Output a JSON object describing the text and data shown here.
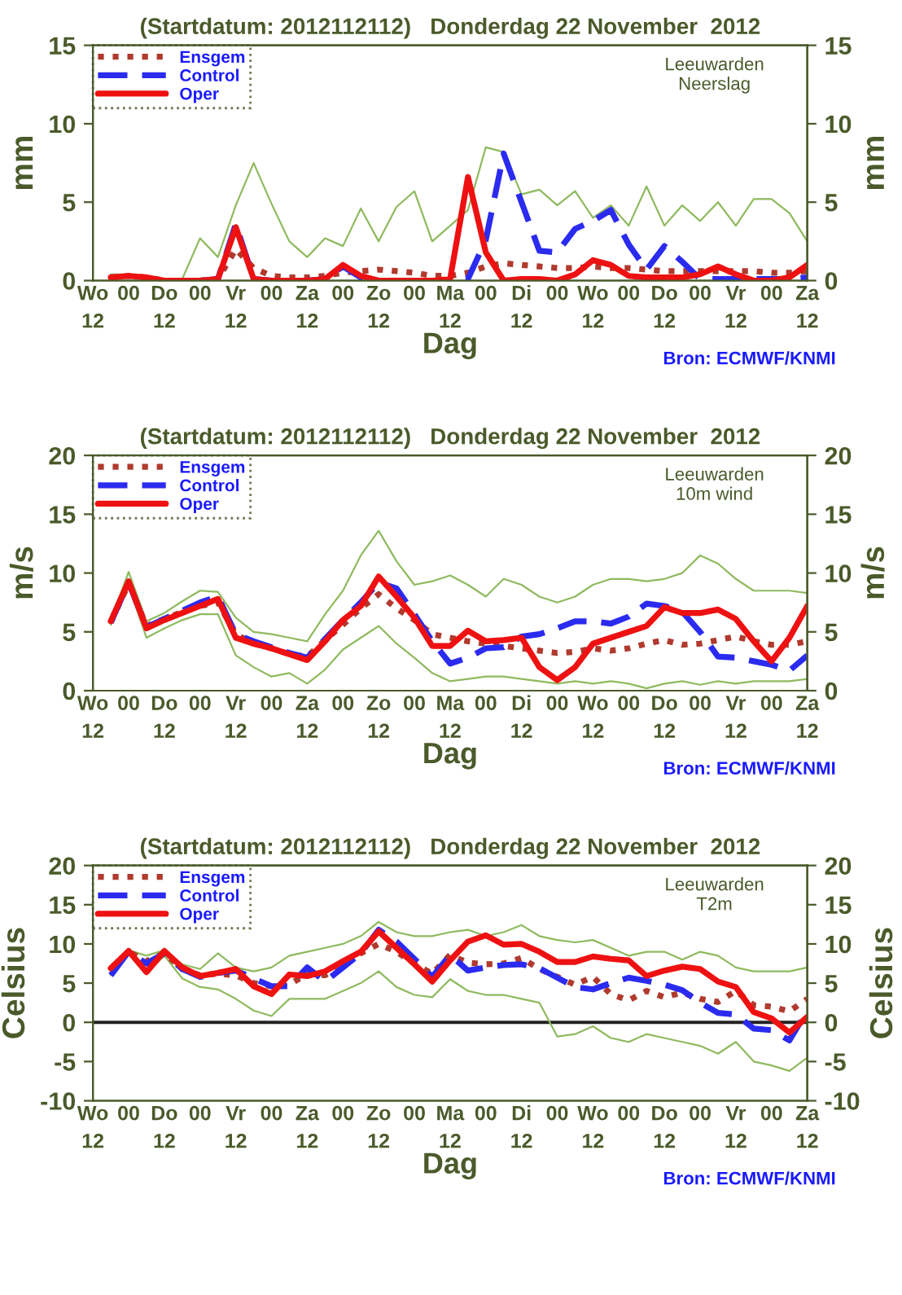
{
  "chart_data": [
    {
      "type": "line",
      "title": "(Startdatum: 2012112112)   Donderdag 22 November  2012",
      "xlabel": "Dag",
      "ylabel": "mm",
      "y2label": "mm",
      "categories": [
        "Wo\n12",
        null,
        "00",
        null,
        "Do\n12",
        null,
        "00",
        null,
        "Vr\n12",
        null,
        "00",
        null,
        "Za\n12",
        null,
        "00",
        null,
        "Zo\n12",
        null,
        "00",
        null,
        "Ma\n12",
        null,
        "00",
        null,
        "Di\n12",
        null,
        "00",
        null,
        "Wo\n12",
        null,
        "00",
        null,
        "Do\n12",
        null,
        "00",
        null,
        "Vr\n12",
        null,
        "00",
        null,
        "Za\n12"
      ],
      "ylim": [
        0,
        15
      ],
      "yticks": [
        0,
        5,
        10,
        15
      ],
      "y2lim": [
        0,
        15
      ],
      "y2ticks": [
        0,
        5,
        10,
        15
      ],
      "grid": false,
      "legend": "top left",
      "annotations": [
        "Leeuwarden\nNeerslag",
        "Bron: ECMWF/KNMI"
      ],
      "series": [
        {
          "color": "#8fba5f",
          "line_style": "solid",
          "values": [
            null,
            0.4,
            0.4,
            0.3,
            0.1,
            0.1,
            2.7,
            1.5,
            4.8,
            7.5,
            4.9,
            2.5,
            1.5,
            2.7,
            2.2,
            4.6,
            2.5,
            4.7,
            5.7,
            2.5,
            3.5,
            4.5,
            8.5,
            8.2,
            5.5,
            5.8,
            4.8,
            5.7,
            4.0,
            4.8,
            3.5,
            6.0,
            3.5,
            4.8,
            3.8,
            5.0,
            3.5,
            5.2,
            5.2,
            4.3,
            2.5
          ]
        },
        {
          "name": "Ensgem",
          "color": "#b03a2e",
          "line_style": "dotted",
          "values": [
            null,
            0.2,
            0.3,
            0.2,
            0,
            0,
            0,
            0.1,
            2.0,
            0.8,
            0.3,
            0.2,
            0.2,
            0.3,
            0.5,
            0.6,
            0.7,
            0.6,
            0.5,
            0.3,
            0.3,
            0.5,
            0.9,
            1.1,
            1.0,
            0.9,
            0.8,
            0.8,
            0.9,
            0.8,
            0.8,
            0.7,
            0.6,
            0.6,
            0.6,
            0.6,
            0.6,
            0.6,
            0.5,
            0.5,
            0.6
          ]
        },
        {
          "name": "Control",
          "color": "#2b2bf0",
          "line_style": "dashed",
          "values": [
            null,
            null,
            null,
            null,
            null,
            null,
            0,
            0.1,
            3.6,
            0.1,
            0,
            0,
            0,
            0.1,
            0.9,
            0.2,
            0,
            0,
            0,
            0,
            0,
            0.1,
            2.6,
            8.1,
            5.0,
            1.9,
            1.8,
            3.3,
            3.8,
            4.5,
            2.3,
            0.7,
            2.2,
            1.2,
            0.1,
            0.1,
            0.1,
            0.1,
            0.1,
            0.1,
            0.2
          ]
        },
        {
          "name": "Oper",
          "color": "#ee1111",
          "line_style": "solid",
          "values": [
            null,
            0.2,
            0.3,
            0.2,
            0,
            0,
            0,
            0.1,
            3.4,
            0.1,
            0,
            0,
            0,
            0.1,
            1.0,
            0.3,
            0,
            0,
            0,
            0,
            0.1,
            6.6,
            1.8,
            0,
            0.1,
            0.1,
            0,
            0.4,
            1.3,
            1.0,
            0.3,
            0.2,
            0.2,
            0.2,
            0.4,
            0.9,
            0.4,
            0,
            0,
            0.2,
            1.0
          ]
        }
      ]
    },
    {
      "type": "line",
      "title": "(Startdatum: 2012112112)   Donderdag 22 November  2012",
      "xlabel": "Dag",
      "ylabel": "m/s",
      "y2label": "m/s",
      "categories": [
        "Wo\n12",
        null,
        "00",
        null,
        "Do\n12",
        null,
        "00",
        null,
        "Vr\n12",
        null,
        "00",
        null,
        "Za\n12",
        null,
        "00",
        null,
        "Zo\n12",
        null,
        "00",
        null,
        "Ma\n12",
        null,
        "00",
        null,
        "Di\n12",
        null,
        "00",
        null,
        "Wo\n12",
        null,
        "00",
        null,
        "Do\n12",
        null,
        "00",
        null,
        "Vr\n12",
        null,
        "00",
        null,
        "Za\n12"
      ],
      "ylim": [
        0,
        20
      ],
      "yticks": [
        0,
        5,
        10,
        15,
        20
      ],
      "y2lim": [
        0,
        20
      ],
      "y2ticks": [
        0,
        5,
        10,
        15,
        20
      ],
      "grid": false,
      "legend": "top left",
      "annotations": [
        "Leeuwarden\n10m wind",
        "Bron: ECMWF/KNMI"
      ],
      "series": [
        {
          "color": "#8fba5f",
          "line_style": "solid",
          "values": [
            null,
            6.0,
            10.1,
            5.9,
            6.6,
            7.6,
            8.5,
            8.4,
            6.2,
            5.0,
            4.8,
            4.5,
            4.2,
            6.5,
            8.5,
            11.5,
            13.6,
            11.0,
            9.0,
            9.3,
            9.8,
            9.0,
            8.0,
            9.5,
            9.0,
            8.0,
            7.5,
            8.0,
            9.0,
            9.5,
            9.5,
            9.3,
            9.5,
            10.0,
            11.5,
            10.8,
            9.5,
            8.5,
            8.5,
            8.5,
            8.3
          ]
        },
        {
          "color": "#8fba5f",
          "line_style": "solid",
          "values": [
            null,
            5.6,
            8.9,
            4.5,
            5.3,
            6.0,
            6.5,
            6.5,
            3.0,
            2.0,
            1.2,
            1.5,
            0.6,
            1.8,
            3.5,
            4.5,
            5.5,
            4.0,
            2.8,
            1.5,
            0.8,
            1.0,
            1.2,
            1.2,
            1.0,
            0.8,
            0.6,
            0.8,
            0.6,
            0.8,
            0.6,
            0.2,
            0.6,
            0.8,
            0.5,
            0.8,
            0.6,
            0.8,
            0.8,
            0.8,
            1.0
          ]
        },
        {
          "name": "Ensgem",
          "color": "#b03a2e",
          "line_style": "dotted",
          "values": [
            null,
            5.8,
            9.1,
            5.5,
            6.1,
            6.7,
            7.2,
            7.5,
            4.8,
            4.0,
            3.6,
            3.1,
            2.9,
            4.3,
            5.6,
            7.0,
            8.2,
            7.0,
            6.0,
            4.8,
            4.5,
            4.2,
            4.0,
            3.8,
            3.6,
            3.4,
            3.2,
            3.3,
            3.6,
            3.4,
            3.6,
            4.0,
            4.3,
            3.9,
            4.0,
            4.3,
            4.6,
            4.2,
            3.9,
            3.9,
            4.2
          ]
        },
        {
          "name": "Control",
          "color": "#2b2bf0",
          "line_style": "dashed",
          "values": [
            null,
            5.8,
            9.2,
            5.4,
            6.1,
            6.8,
            7.5,
            8.0,
            4.8,
            4.2,
            3.7,
            3.2,
            2.8,
            4.4,
            6.0,
            7.5,
            9.2,
            8.7,
            6.5,
            4.2,
            2.3,
            2.8,
            3.6,
            3.7,
            4.6,
            4.8,
            5.3,
            5.9,
            5.9,
            5.7,
            6.3,
            7.4,
            7.2,
            6.7,
            5.0,
            2.9,
            2.8,
            2.5,
            2.2,
            1.7,
            3.0
          ]
        },
        {
          "name": "Oper",
          "color": "#ee1111",
          "line_style": "solid",
          "values": [
            null,
            5.9,
            9.3,
            5.3,
            6.0,
            6.6,
            7.2,
            7.8,
            4.5,
            4.0,
            3.6,
            3.1,
            2.6,
            4.2,
            6.0,
            7.2,
            9.7,
            8.0,
            6.2,
            3.8,
            3.8,
            5.1,
            4.2,
            4.3,
            4.5,
            2.0,
            0.9,
            2.0,
            4.0,
            4.5,
            5.0,
            5.5,
            7.1,
            6.6,
            6.6,
            6.9,
            6.1,
            4.2,
            2.5,
            4.5,
            7.2
          ]
        }
      ]
    },
    {
      "type": "line",
      "title": "(Startdatum: 2012112112)   Donderdag 22 November  2012",
      "xlabel": "Dag",
      "ylabel": "Celsius",
      "y2label": "Celsius",
      "categories": [
        "Wo\n12",
        null,
        "00",
        null,
        "Do\n12",
        null,
        "00",
        null,
        "Vr\n12",
        null,
        "00",
        null,
        "Za\n12",
        null,
        "00",
        null,
        "Zo\n12",
        null,
        "00",
        null,
        "Ma\n12",
        null,
        "00",
        null,
        "Di\n12",
        null,
        "00",
        null,
        "Wo\n12",
        null,
        "00",
        null,
        "Do\n12",
        null,
        "00",
        null,
        "Vr\n12",
        null,
        "00",
        null,
        "Za\n12"
      ],
      "ylim": [
        -10,
        20
      ],
      "yticks": [
        -10,
        -5,
        0,
        5,
        10,
        15,
        20
      ],
      "y2lim": [
        -10,
        20
      ],
      "y2ticks": [
        -10,
        -5,
        0,
        5,
        10,
        15,
        20
      ],
      "grid": false,
      "legend": "top left",
      "ref_lines": [
        {
          "axis": "y",
          "value": 0,
          "color": "#222222",
          "line_style": "solid"
        }
      ],
      "annotations": [
        "Leeuwarden\nT2m",
        "Bron: ECMWF/KNMI"
      ],
      "series": [
        {
          "color": "#8fba5f",
          "line_style": "solid",
          "values": [
            null,
            7.2,
            9.2,
            8.5,
            9.2,
            7.4,
            6.8,
            8.8,
            7.0,
            6.5,
            7.0,
            8.5,
            9.0,
            9.5,
            10.0,
            11.0,
            12.8,
            11.5,
            11.0,
            11.0,
            11.5,
            11.8,
            11.0,
            11.5,
            12.4,
            11.0,
            10.5,
            10.2,
            10.5,
            9.5,
            8.5,
            9.0,
            9.0,
            8.0,
            9.0,
            8.5,
            7.0,
            6.5,
            6.5,
            6.5,
            7.0
          ]
        },
        {
          "color": "#8fba5f",
          "line_style": "solid",
          "values": [
            null,
            6.0,
            8.8,
            6.2,
            8.5,
            5.6,
            4.5,
            4.2,
            3.0,
            1.5,
            0.8,
            3.0,
            3.0,
            3.0,
            4.0,
            5.0,
            6.5,
            4.5,
            3.5,
            3.2,
            5.5,
            4.0,
            3.5,
            3.5,
            3.0,
            2.5,
            -1.8,
            -1.5,
            -0.5,
            -2.0,
            -2.5,
            -1.5,
            -2.0,
            -2.5,
            -3.0,
            -4.0,
            -2.5,
            -5.0,
            -5.5,
            -6.2,
            -4.5
          ]
        },
        {
          "name": "Ensgem",
          "color": "#b03a2e",
          "line_style": "dotted",
          "values": [
            null,
            6.6,
            9.0,
            7.8,
            8.8,
            6.8,
            6.0,
            6.2,
            6.0,
            5.0,
            4.6,
            4.8,
            6.2,
            6.0,
            7.5,
            8.8,
            10.0,
            9.0,
            7.5,
            6.2,
            8.6,
            7.6,
            7.4,
            7.5,
            8.2,
            6.8,
            5.8,
            4.8,
            5.8,
            3.6,
            2.8,
            4.0,
            3.2,
            3.8,
            3.0,
            2.6,
            4.0,
            2.2,
            2.0,
            1.4,
            3.0
          ]
        },
        {
          "name": "Control",
          "color": "#2b2bf0",
          "line_style": "dashed",
          "values": [
            null,
            6.0,
            9.0,
            7.5,
            8.8,
            6.8,
            5.8,
            6.3,
            6.6,
            5.6,
            4.6,
            4.6,
            7.0,
            5.2,
            7.0,
            8.8,
            11.8,
            10.3,
            8.1,
            5.8,
            8.6,
            6.6,
            7.0,
            7.3,
            7.4,
            6.9,
            5.7,
            4.5,
            4.2,
            5.0,
            5.7,
            5.3,
            4.8,
            4.1,
            2.5,
            1.2,
            1.0,
            -0.8,
            -1.0,
            -2.3,
            1.5
          ]
        },
        {
          "name": "Oper",
          "color": "#ee1111",
          "line_style": "solid",
          "values": [
            null,
            6.9,
            9.1,
            6.4,
            9.1,
            7.0,
            5.9,
            6.3,
            6.8,
            4.6,
            3.6,
            6.1,
            5.9,
            6.5,
            7.8,
            9.0,
            11.6,
            9.5,
            7.4,
            5.2,
            7.9,
            10.3,
            11.1,
            9.9,
            10.0,
            9.0,
            7.7,
            7.7,
            8.4,
            8.1,
            7.9,
            5.9,
            6.6,
            7.1,
            6.8,
            5.2,
            4.5,
            1.3,
            0.5,
            -1.3,
            0.7
          ]
        }
      ]
    }
  ]
}
